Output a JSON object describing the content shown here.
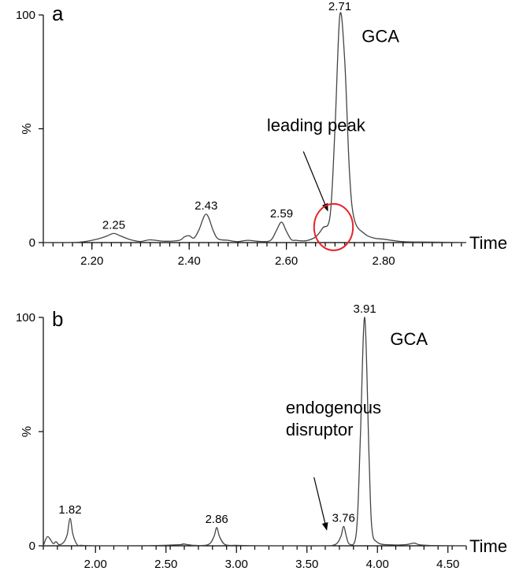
{
  "chart_data": [
    {
      "type": "line",
      "panel_label": "a",
      "xlabel": "Time",
      "ylabel": "%",
      "xlim": [
        2.1,
        2.97
      ],
      "ylim": [
        0,
        100
      ],
      "x_ticks": [
        2.2,
        2.4,
        2.6,
        2.8
      ],
      "x_tick_labels": [
        "2.20",
        "2.40",
        "2.60",
        "2.80"
      ],
      "x_minor_step": 0.02,
      "y_ticks": [
        0,
        50,
        100
      ],
      "y_tick_labels": [
        "0",
        "%",
        "100"
      ],
      "series": [
        {
          "x": [
            2.1,
            2.14,
            2.18,
            2.21,
            2.23,
            2.245,
            2.26,
            2.28,
            2.3,
            2.32,
            2.35,
            2.38,
            2.39,
            2.4,
            2.41,
            2.42,
            2.435,
            2.45,
            2.46,
            2.48,
            2.5,
            2.52,
            2.54,
            2.56,
            2.57,
            2.58,
            2.59,
            2.6,
            2.61,
            2.62,
            2.64,
            2.66,
            2.675,
            2.69,
            2.7,
            2.71,
            2.72,
            2.73,
            2.74,
            2.76,
            2.78,
            2.8,
            2.84,
            2.9,
            2.97
          ],
          "y": [
            0,
            0,
            0.3,
            1.5,
            2.8,
            4.0,
            2.8,
            1.2,
            0.5,
            1.2,
            0.6,
            1.0,
            2.5,
            3.0,
            2.0,
            5.5,
            12.5,
            5.0,
            1.6,
            1.0,
            0.4,
            1.0,
            0.6,
            0.5,
            1.5,
            5.5,
            9.0,
            5.0,
            1.3,
            1.0,
            0.8,
            2.5,
            6.5,
            12.0,
            50.0,
            100.0,
            80.0,
            30.0,
            10.0,
            4.0,
            2.0,
            1.5,
            0.4,
            0.2,
            0
          ]
        }
      ],
      "peak_labels": [
        {
          "x": 2.245,
          "y": 4.0,
          "text": "2.25"
        },
        {
          "x": 2.435,
          "y": 12.5,
          "text": "2.43"
        },
        {
          "x": 2.59,
          "y": 9.0,
          "text": "2.59"
        },
        {
          "x": 2.71,
          "y": 100.0,
          "text": "2.71"
        }
      ],
      "compound_label": {
        "text": "GCA",
        "x": 2.755,
        "y": 88
      },
      "annotation": {
        "text": "leading peak",
        "text_x": 2.56,
        "text_y": 49,
        "arrow_from_x": 2.635,
        "arrow_from_y": 40,
        "arrow_to_x": 2.685,
        "arrow_to_y": 14
      },
      "circle": {
        "x": 2.697,
        "y": 6.8,
        "rx": 0.04,
        "ry": 10.2,
        "color": "#e3242b"
      }
    },
    {
      "type": "line",
      "panel_label": "b",
      "xlabel": "Time",
      "ylabel": "%",
      "xlim": [
        1.63,
        4.63
      ],
      "ylim": [
        0,
        100
      ],
      "x_ticks": [
        2.0,
        2.5,
        3.0,
        3.5,
        4.0,
        4.5
      ],
      "x_tick_labels": [
        "2.00",
        "2.50",
        "3.00",
        "3.50",
        "4.00",
        "4.50"
      ],
      "x_minor_step": 0.1,
      "y_ticks": [
        0,
        50,
        100
      ],
      "y_tick_labels": [
        "0",
        "%",
        "100"
      ],
      "series": [
        {
          "x": [
            1.63,
            1.66,
            1.7,
            1.72,
            1.74,
            1.76,
            1.78,
            1.8,
            1.82,
            1.84,
            1.87,
            1.9,
            2.0,
            2.2,
            2.4,
            2.6,
            2.62,
            2.7,
            2.8,
            2.84,
            2.86,
            2.88,
            2.92,
            3.0,
            3.2,
            3.4,
            3.6,
            3.7,
            3.74,
            3.76,
            3.78,
            3.8,
            3.84,
            3.86,
            3.88,
            3.91,
            3.94,
            3.96,
            4.0,
            4.1,
            4.2,
            4.26,
            4.3,
            4.4,
            4.63
          ],
          "y": [
            0,
            4.0,
            1.0,
            1.8,
            0.5,
            0.8,
            2.0,
            5.0,
            12.0,
            5.0,
            0.5,
            0.2,
            0,
            0,
            0.1,
            0.5,
            0.8,
            0.2,
            0.5,
            4.0,
            8.0,
            4.0,
            0.5,
            0.2,
            0,
            0,
            0,
            0.5,
            4.0,
            8.5,
            4.0,
            0.8,
            2.0,
            15.0,
            50.0,
            100.0,
            40.0,
            8.0,
            1.5,
            0.4,
            0.5,
            1.2,
            0.4,
            0.1,
            0
          ]
        }
      ],
      "peak_labels": [
        {
          "x": 1.82,
          "y": 12.0,
          "text": "1.82"
        },
        {
          "x": 2.86,
          "y": 8.0,
          "text": "2.86"
        },
        {
          "x": 3.76,
          "y": 8.5,
          "text": "3.76"
        },
        {
          "x": 3.91,
          "y": 100.0,
          "text": "3.91"
        }
      ],
      "compound_label": {
        "text": "GCA",
        "x": 4.09,
        "y": 88
      },
      "annotation": {
        "text_lines": [
          "endogenous",
          "disruptor"
        ],
        "text_x": 3.35,
        "text_y": 58,
        "arrow_from_x": 3.55,
        "arrow_from_y": 30,
        "arrow_to_x": 3.64,
        "arrow_to_y": 7
      }
    }
  ]
}
